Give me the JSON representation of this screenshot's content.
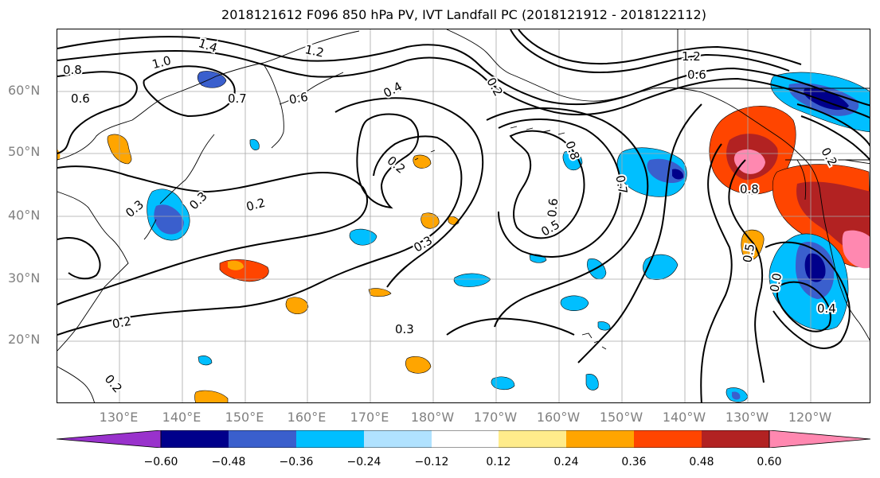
{
  "title": "2018121612 F096 850 hPa PV, IVT Landfall PC (2018121912 - 2018122112)",
  "lat_labels": [
    "60°N",
    "50°N",
    "40°N",
    "30°N",
    "20°N"
  ],
  "lon_labels": [
    "130°E",
    "140°E",
    "150°E",
    "160°E",
    "170°E",
    "180°W",
    "170°W",
    "160°W",
    "150°W",
    "140°W",
    "130°W",
    "120°W"
  ],
  "contour_labels": [
    "1.4",
    "1.2",
    "1.0",
    "0.8",
    "0.6",
    "0.7",
    "0.6",
    "0.4",
    "0.3",
    "0.2",
    "0.2",
    "0.2",
    "0.3",
    "0.3",
    "0.2",
    "0.3",
    "0.2",
    "0.6",
    "0.5",
    "0.8",
    "0.7",
    "1.2",
    "0.6",
    "0.8",
    "0.5",
    "0.0",
    "0.4",
    "0.2"
  ],
  "colorbar": {
    "ticks": [
      "−0.60",
      "−0.48",
      "−0.36",
      "−0.24",
      "−0.12",
      "0.12",
      "0.24",
      "0.36",
      "0.48",
      "0.60"
    ],
    "colors": [
      "#9932cc",
      "#00008b",
      "#3a5fcd",
      "#00bfff",
      "#b0e2ff",
      "#ffffff",
      "#ffec8b",
      "#ffa500",
      "#ff4500",
      "#b22222",
      "#ff88b0"
    ]
  }
}
